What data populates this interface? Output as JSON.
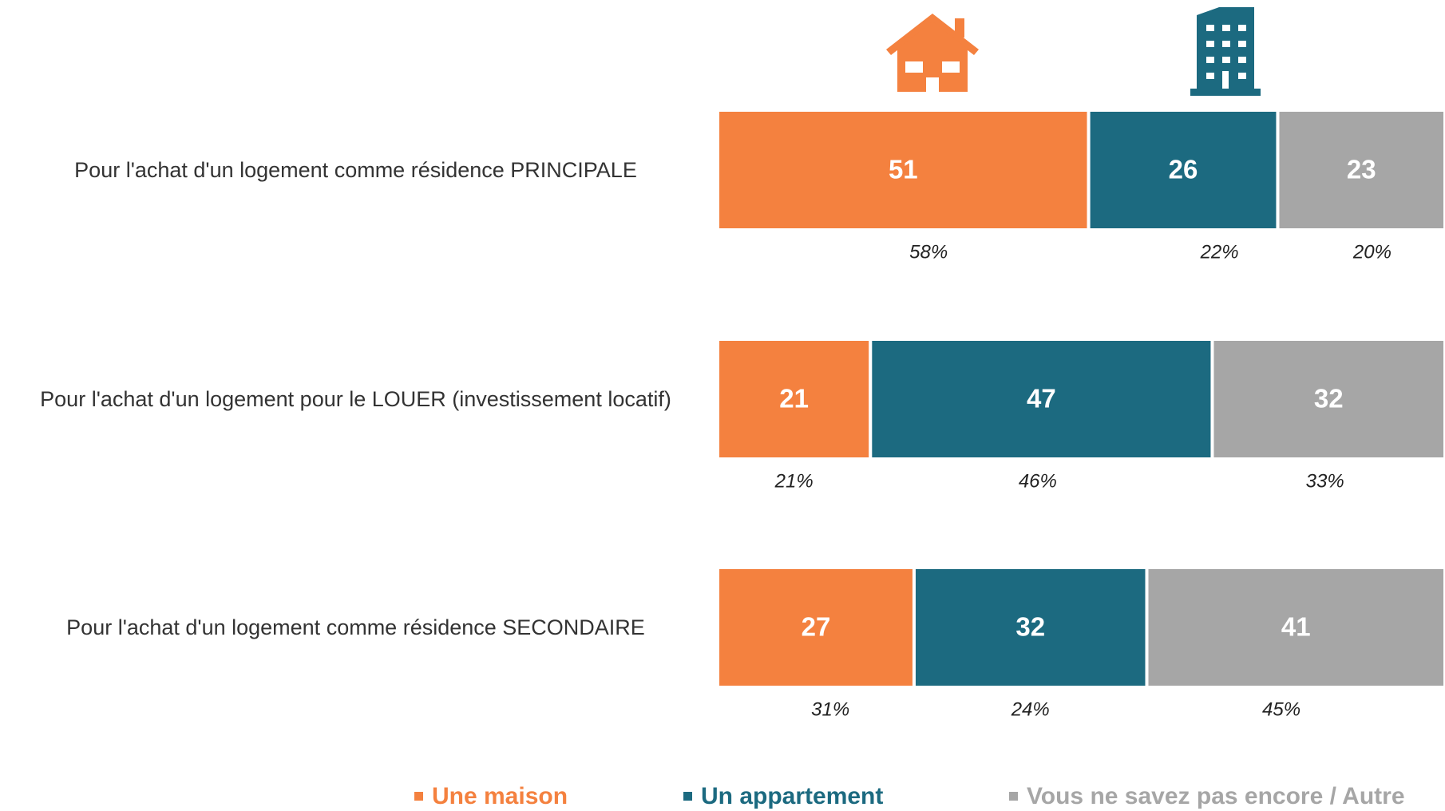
{
  "chart_data": {
    "type": "stacked_bar_horizontal",
    "categories": [
      "Pour l'achat d'un logement comme résidence PRINCIPALE",
      "Pour l'achat d'un logement pour le LOUER (investissement locatif)",
      "Pour l'achat d'un logement comme résidence SECONDAIRE"
    ],
    "xlim": [
      0,
      100
    ],
    "series": [
      {
        "name": "Une maison",
        "color": "#f4813f",
        "values": [
          51,
          21,
          27
        ],
        "comparison": {
          "values": [
            58,
            21,
            31
          ],
          "value_labels": [
            "58%",
            "21%",
            "31%"
          ]
        }
      },
      {
        "name": "Un appartement",
        "color": "#1c6a80",
        "values": [
          26,
          47,
          32
        ],
        "comparison": {
          "values": [
            22,
            46,
            24
          ],
          "value_labels": [
            "22%",
            "46%",
            "24%"
          ]
        }
      },
      {
        "name": "Vous ne savez pas encore / Autre",
        "color": "#a6a6a6",
        "values": [
          23,
          32,
          41
        ],
        "comparison": {
          "values": [
            20,
            33,
            45
          ],
          "value_labels": [
            "20%",
            "33%",
            "45%"
          ]
        }
      }
    ]
  }
}
